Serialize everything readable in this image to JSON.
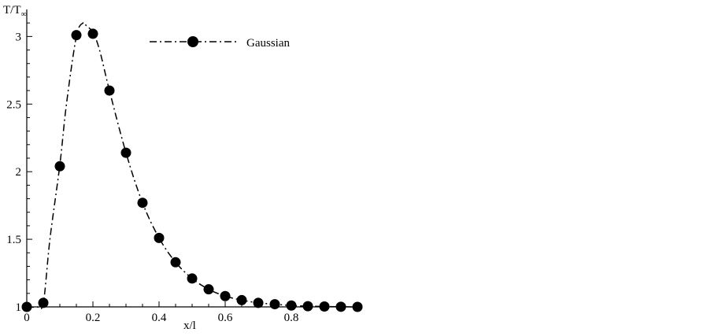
{
  "chart_data": {
    "type": "line",
    "title": "",
    "xlabel": "x/l",
    "ylabel": "T/T∞",
    "ylabel_main": "T/T",
    "ylabel_sub": "∞",
    "xlim": [
      0,
      1
    ],
    "ylim": [
      1,
      3.2
    ],
    "x_ticks": [
      0,
      0.2,
      0.4,
      0.6,
      0.8
    ],
    "x_tick_labels": [
      "0",
      "0.2",
      "0.4",
      "0.6",
      "0.8"
    ],
    "y_ticks": [
      1,
      1.5,
      2,
      2.5,
      3
    ],
    "y_tick_labels": [
      "1",
      "1.5",
      "2",
      "2.5",
      "3"
    ],
    "grid": false,
    "legend_position": "top-right",
    "series": [
      {
        "name": "Gaussian",
        "line_style": "dash-dot",
        "marker": "filled-circle",
        "color": "#000000",
        "curve": {
          "x": [
            0,
            0.03,
            0.05,
            0.07,
            0.1,
            0.12,
            0.15,
            0.17,
            0.18,
            0.2,
            0.22,
            0.25,
            0.3,
            0.35,
            0.4,
            0.45,
            0.5,
            0.55,
            0.6,
            0.65,
            0.7,
            0.75,
            0.8,
            0.85,
            0.9,
            0.95,
            1.0
          ],
          "y": [
            1.0,
            1.0,
            1.03,
            1.5,
            2.05,
            2.5,
            3.0,
            3.1,
            3.08,
            3.03,
            2.9,
            2.6,
            2.14,
            1.77,
            1.51,
            1.33,
            1.21,
            1.13,
            1.08,
            1.05,
            1.03,
            1.02,
            1.01,
            1.005,
            1.003,
            1.001,
            1.0
          ]
        },
        "points": {
          "x": [
            0,
            0.05,
            0.1,
            0.15,
            0.2,
            0.25,
            0.3,
            0.35,
            0.4,
            0.45,
            0.5,
            0.55,
            0.6,
            0.65,
            0.7,
            0.75,
            0.8,
            0.85,
            0.9,
            0.95,
            1.0
          ],
          "y": [
            1.0,
            1.03,
            2.04,
            3.01,
            3.02,
            2.6,
            2.14,
            1.77,
            1.51,
            1.33,
            1.21,
            1.13,
            1.08,
            1.05,
            1.03,
            1.02,
            1.01,
            1.005,
            1.003,
            1.001,
            1.0
          ]
        }
      }
    ]
  }
}
